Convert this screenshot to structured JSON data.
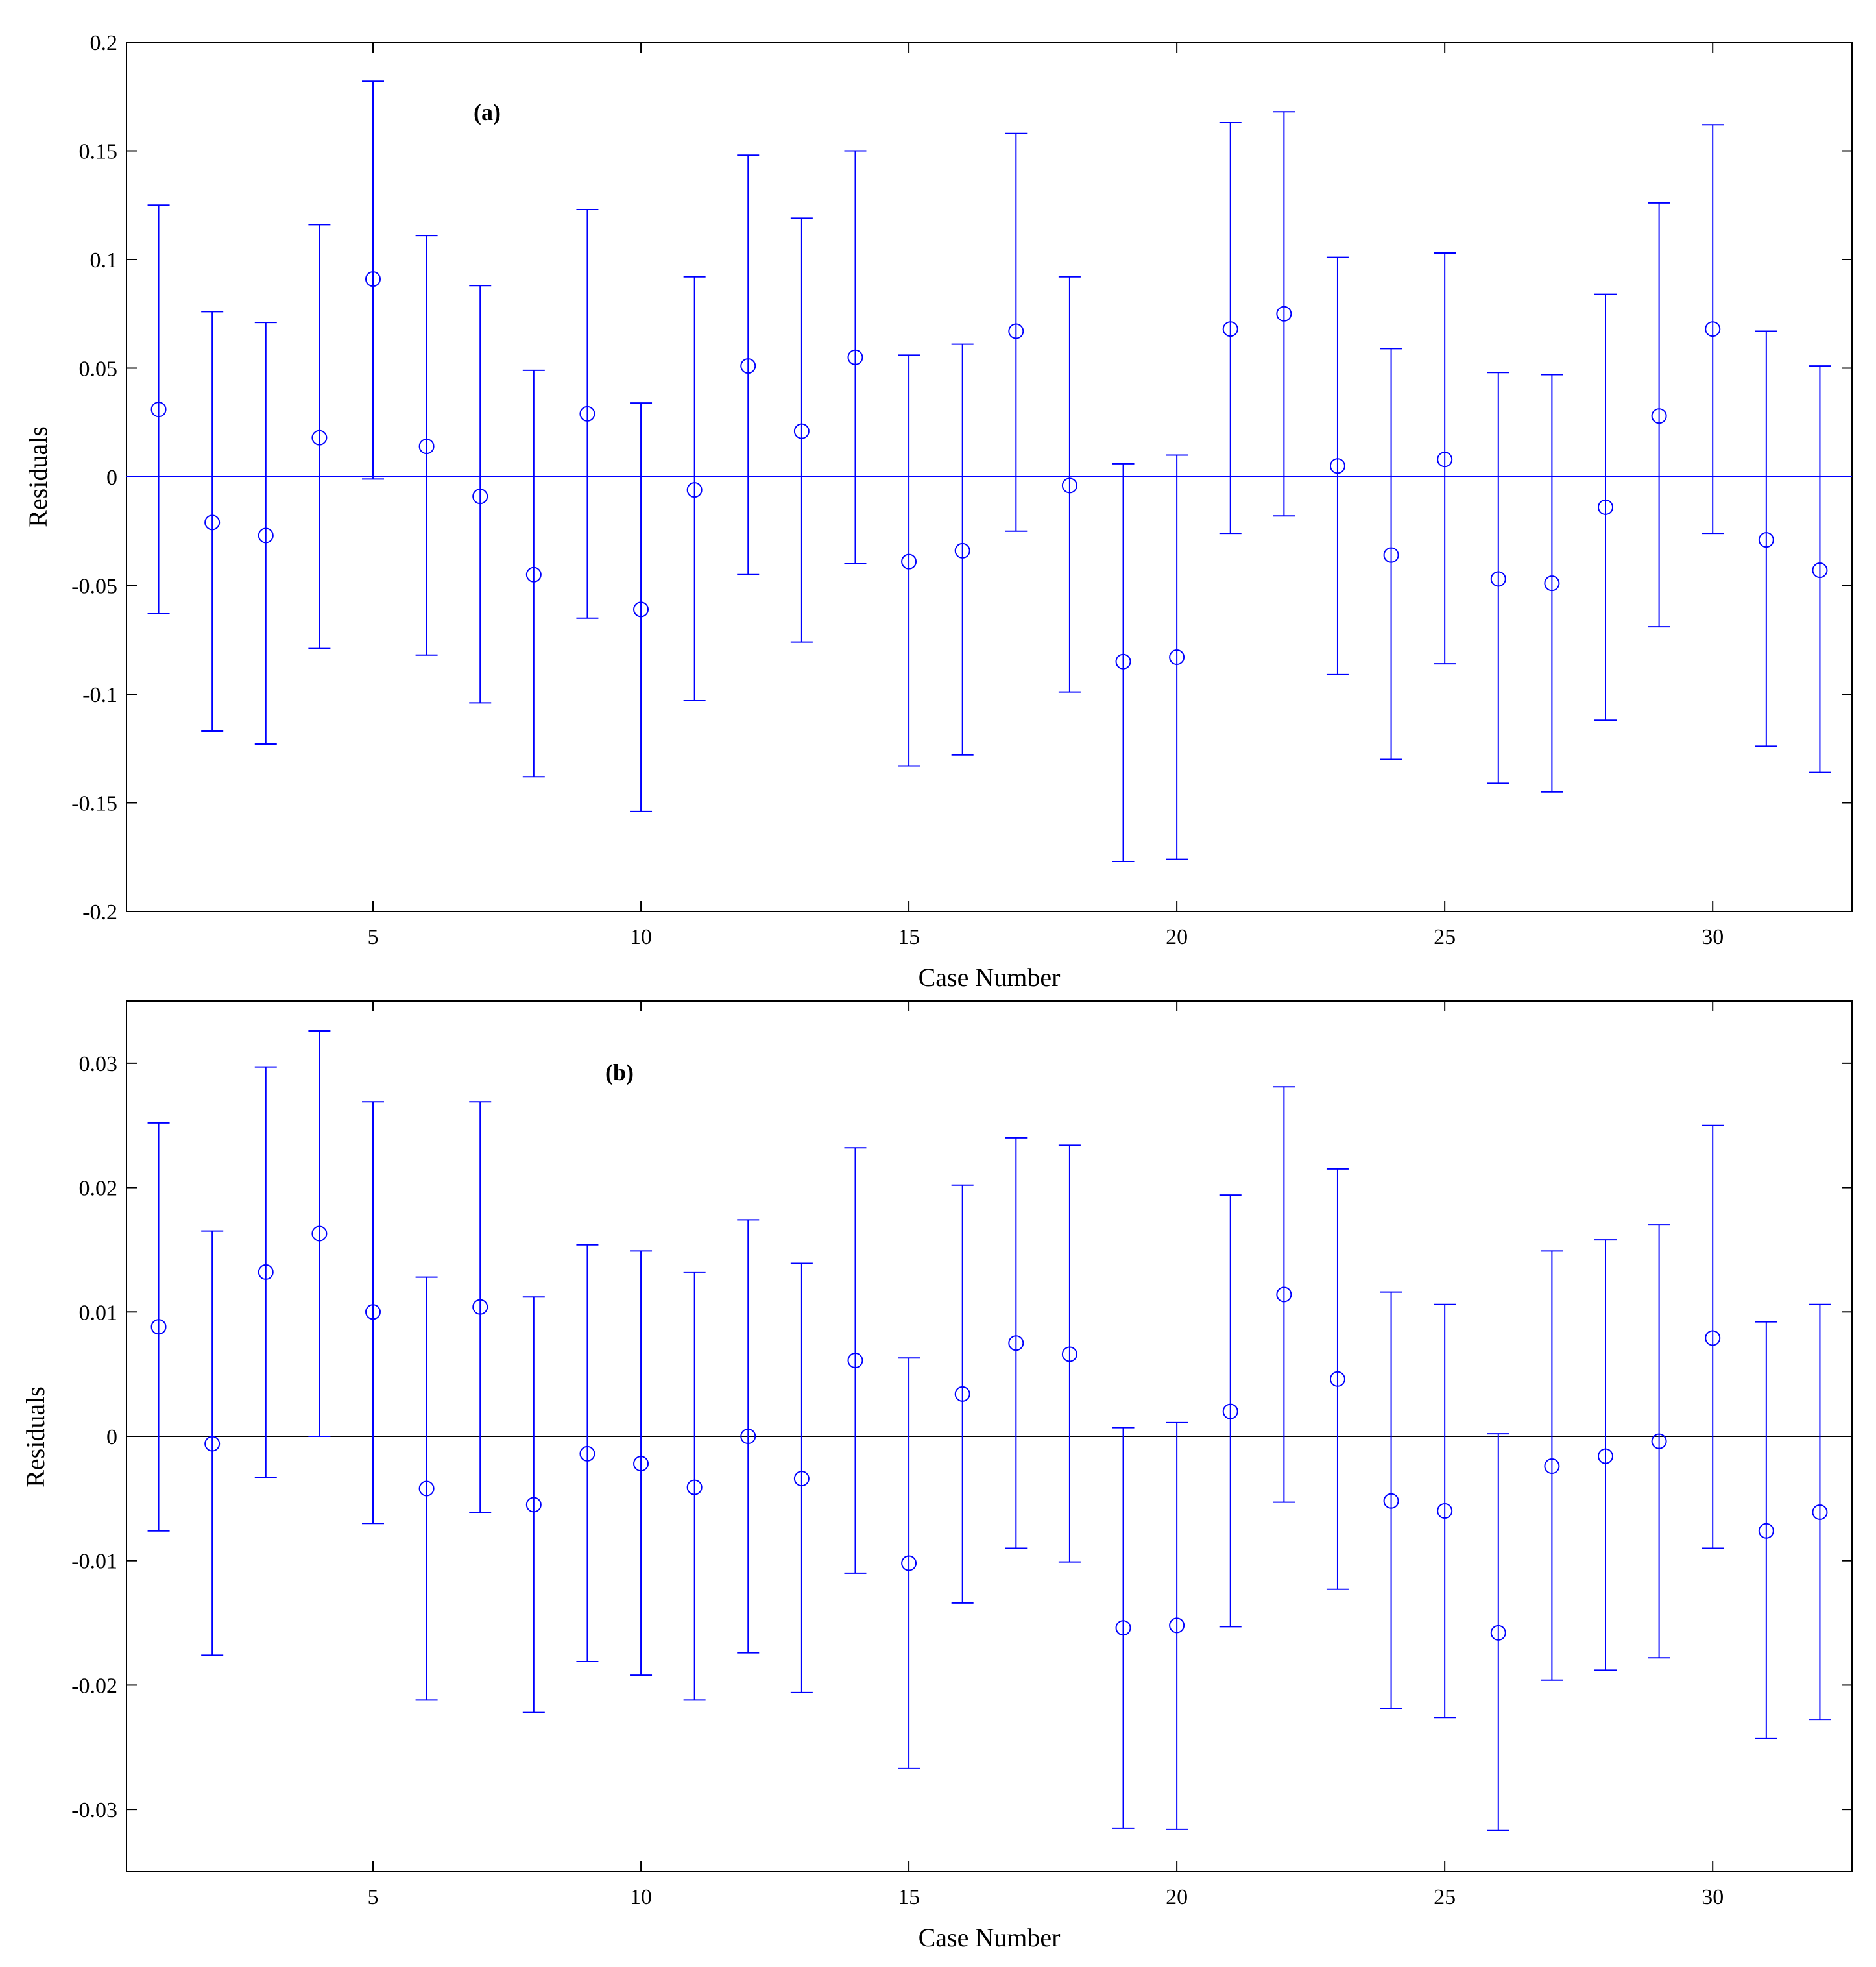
{
  "colors": {
    "marker": "#0000ff",
    "axis": "#000000",
    "background": "#ffffff"
  },
  "chart_data": [
    {
      "type": "errorbar",
      "panel_label": "(a)",
      "xlabel": "Case Number",
      "ylabel": "Residuals",
      "xlim": [
        0.4,
        32.6
      ],
      "ylim": [
        -0.2,
        0.2
      ],
      "xticks": [
        5,
        10,
        15,
        20,
        25,
        30
      ],
      "xtick_labels": [
        "5",
        "10",
        "15",
        "20",
        "25",
        "30"
      ],
      "yticks": [
        -0.2,
        -0.15,
        -0.1,
        -0.05,
        0,
        0.05,
        0.1,
        0.15,
        0.2
      ],
      "ytick_labels": [
        "-0.2",
        "-0.15",
        "-0.1",
        "-0.05",
        "0",
        "0.05",
        "0.1",
        "0.15",
        "0.2"
      ],
      "reference_line": {
        "y": 0,
        "color": "#0000ff"
      },
      "x": [
        1,
        2,
        3,
        4,
        5,
        6,
        7,
        8,
        9,
        10,
        11,
        12,
        13,
        14,
        15,
        16,
        17,
        18,
        19,
        20,
        21,
        22,
        23,
        24,
        25,
        26,
        27,
        28,
        29,
        30,
        31,
        32
      ],
      "values": [
        0.031,
        -0.021,
        -0.027,
        0.018,
        0.091,
        0.014,
        -0.009,
        -0.045,
        0.029,
        -0.061,
        -0.006,
        0.051,
        0.021,
        0.055,
        -0.039,
        -0.034,
        0.067,
        -0.004,
        -0.085,
        -0.083,
        0.068,
        0.075,
        0.005,
        -0.036,
        0.008,
        -0.047,
        -0.049,
        -0.014,
        0.028,
        0.068,
        -0.029,
        -0.043
      ],
      "lower": [
        -0.063,
        -0.117,
        -0.123,
        -0.079,
        -0.001,
        -0.082,
        -0.104,
        -0.138,
        -0.065,
        -0.154,
        -0.103,
        -0.045,
        -0.076,
        -0.04,
        -0.133,
        -0.128,
        -0.025,
        -0.099,
        -0.177,
        -0.176,
        -0.026,
        -0.018,
        -0.091,
        -0.13,
        -0.086,
        -0.141,
        -0.145,
        -0.112,
        -0.069,
        -0.026,
        -0.124,
        -0.136
      ],
      "upper": [
        0.125,
        0.076,
        0.071,
        0.116,
        0.182,
        0.111,
        0.088,
        0.049,
        0.123,
        0.034,
        0.092,
        0.148,
        0.119,
        0.15,
        0.056,
        0.061,
        0.158,
        0.092,
        0.006,
        0.01,
        0.163,
        0.168,
        0.101,
        0.059,
        0.103,
        0.048,
        0.047,
        0.084,
        0.126,
        0.162,
        0.067,
        0.051
      ]
    },
    {
      "type": "errorbar",
      "panel_label": "(b)",
      "xlabel": "Case Number",
      "ylabel": "Residuals",
      "xlim": [
        0.4,
        32.6
      ],
      "ylim": [
        -0.035,
        0.035
      ],
      "xticks": [
        5,
        10,
        15,
        20,
        25,
        30
      ],
      "xtick_labels": [
        "5",
        "10",
        "15",
        "20",
        "25",
        "30"
      ],
      "yticks": [
        -0.03,
        -0.02,
        -0.01,
        0,
        0.01,
        0.02,
        0.03
      ],
      "ytick_labels": [
        "-0.03",
        "-0.02",
        "-0.01",
        "0",
        "0.01",
        "0.02",
        "0.03"
      ],
      "reference_line": {
        "y": 0,
        "color": "#000000"
      },
      "x": [
        1,
        2,
        3,
        4,
        5,
        6,
        7,
        8,
        9,
        10,
        11,
        12,
        13,
        14,
        15,
        16,
        17,
        18,
        19,
        20,
        21,
        22,
        23,
        24,
        25,
        26,
        27,
        28,
        29,
        30,
        31,
        32
      ],
      "values": [
        0.0088,
        -0.0006,
        0.0132,
        0.0163,
        0.01,
        -0.0042,
        0.0104,
        -0.0055,
        -0.0014,
        -0.0022,
        -0.0041,
        0.0,
        -0.0034,
        0.0061,
        -0.0102,
        0.0034,
        0.0075,
        0.0066,
        -0.0154,
        -0.0152,
        0.002,
        0.0114,
        0.0046,
        -0.0052,
        -0.006,
        -0.0158,
        -0.0024,
        -0.0016,
        -0.0004,
        0.0079,
        -0.0076,
        -0.0061
      ],
      "lower": [
        -0.0076,
        -0.0176,
        -0.0033,
        0.0,
        -0.007,
        -0.0212,
        -0.0061,
        -0.0222,
        -0.0181,
        -0.0192,
        -0.0212,
        -0.0174,
        -0.0206,
        -0.011,
        -0.0267,
        -0.0134,
        -0.009,
        -0.0101,
        -0.0315,
        -0.0316,
        -0.0153,
        -0.0053,
        -0.0123,
        -0.0219,
        -0.0226,
        -0.0317,
        -0.0196,
        -0.0188,
        -0.0178,
        -0.009,
        -0.0243,
        -0.0228
      ],
      "upper": [
        0.0252,
        0.0165,
        0.0297,
        0.0326,
        0.0269,
        0.0128,
        0.0269,
        0.0112,
        0.0154,
        0.0149,
        0.0132,
        0.0174,
        0.0139,
        0.0232,
        0.0063,
        0.0202,
        0.024,
        0.0234,
        0.0007,
        0.0011,
        0.0194,
        0.0281,
        0.0215,
        0.0116,
        0.0106,
        0.0002,
        0.0149,
        0.0158,
        0.017,
        0.025,
        0.0092,
        0.0106
      ]
    }
  ]
}
